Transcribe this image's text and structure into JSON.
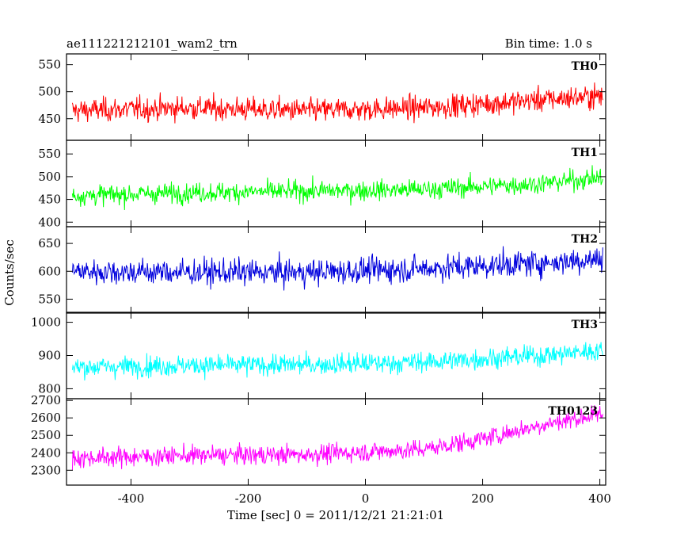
{
  "header": {
    "title": "ae111221212101_wam2_trn",
    "bin_time": "Bin time: 1.0 s"
  },
  "xlabel": "Time [sec] 0 = 2011/12/21 21:21:01",
  "ylabel": "Counts/sec",
  "chart_data": [
    {
      "type": "line",
      "series": [
        {
          "name": "TH0",
          "color": "#ff0000"
        }
      ],
      "xlim": [
        -510,
        410
      ],
      "ylim": [
        410,
        570
      ],
      "yticks": [
        450,
        500,
        550
      ],
      "trend": {
        "x": [
          -500,
          -300,
          -100,
          100,
          300,
          400
        ],
        "y": [
          465,
          470,
          465,
          470,
          485,
          492
        ]
      },
      "noise": 28
    },
    {
      "type": "line",
      "series": [
        {
          "name": "TH1",
          "color": "#00ff00"
        }
      ],
      "xlim": [
        -510,
        410
      ],
      "ylim": [
        390,
        580
      ],
      "yticks": [
        400,
        450,
        500,
        550
      ],
      "trend": {
        "x": [
          -500,
          -300,
          -100,
          100,
          300,
          400
        ],
        "y": [
          458,
          465,
          468,
          472,
          485,
          498
        ]
      },
      "noise": 28
    },
    {
      "type": "line",
      "series": [
        {
          "name": "TH2",
          "color": "#0000dd"
        }
      ],
      "xlim": [
        -510,
        410
      ],
      "ylim": [
        525,
        680
      ],
      "yticks": [
        550,
        600,
        650
      ],
      "trend": {
        "x": [
          -500,
          -300,
          -100,
          100,
          300,
          400
        ],
        "y": [
          600,
          598,
          598,
          605,
          615,
          622
        ]
      },
      "noise": 30
    },
    {
      "type": "line",
      "series": [
        {
          "name": "TH3",
          "color": "#00ffff"
        }
      ],
      "xlim": [
        -510,
        410
      ],
      "ylim": [
        770,
        1030
      ],
      "yticks": [
        800,
        900,
        1000
      ],
      "trend": {
        "x": [
          -500,
          -300,
          -100,
          100,
          300,
          400
        ],
        "y": [
          865,
          870,
          872,
          880,
          900,
          915
        ]
      },
      "noise": 40
    },
    {
      "type": "line",
      "series": [
        {
          "name": "TH0123",
          "color": "#ff00ff"
        }
      ],
      "xlim": [
        -510,
        410
      ],
      "ylim": [
        2215,
        2710
      ],
      "yticks": [
        2300,
        2400,
        2500,
        2600,
        2700
      ],
      "trend": {
        "x": [
          -500,
          -300,
          -100,
          100,
          200,
          300,
          400
        ],
        "y": [
          2370,
          2385,
          2390,
          2420,
          2480,
          2560,
          2620
        ]
      },
      "noise": 70
    }
  ],
  "x_axis": {
    "xlim": [
      -510,
      410
    ],
    "ticks": [
      -400,
      -200,
      0,
      200,
      400
    ]
  }
}
